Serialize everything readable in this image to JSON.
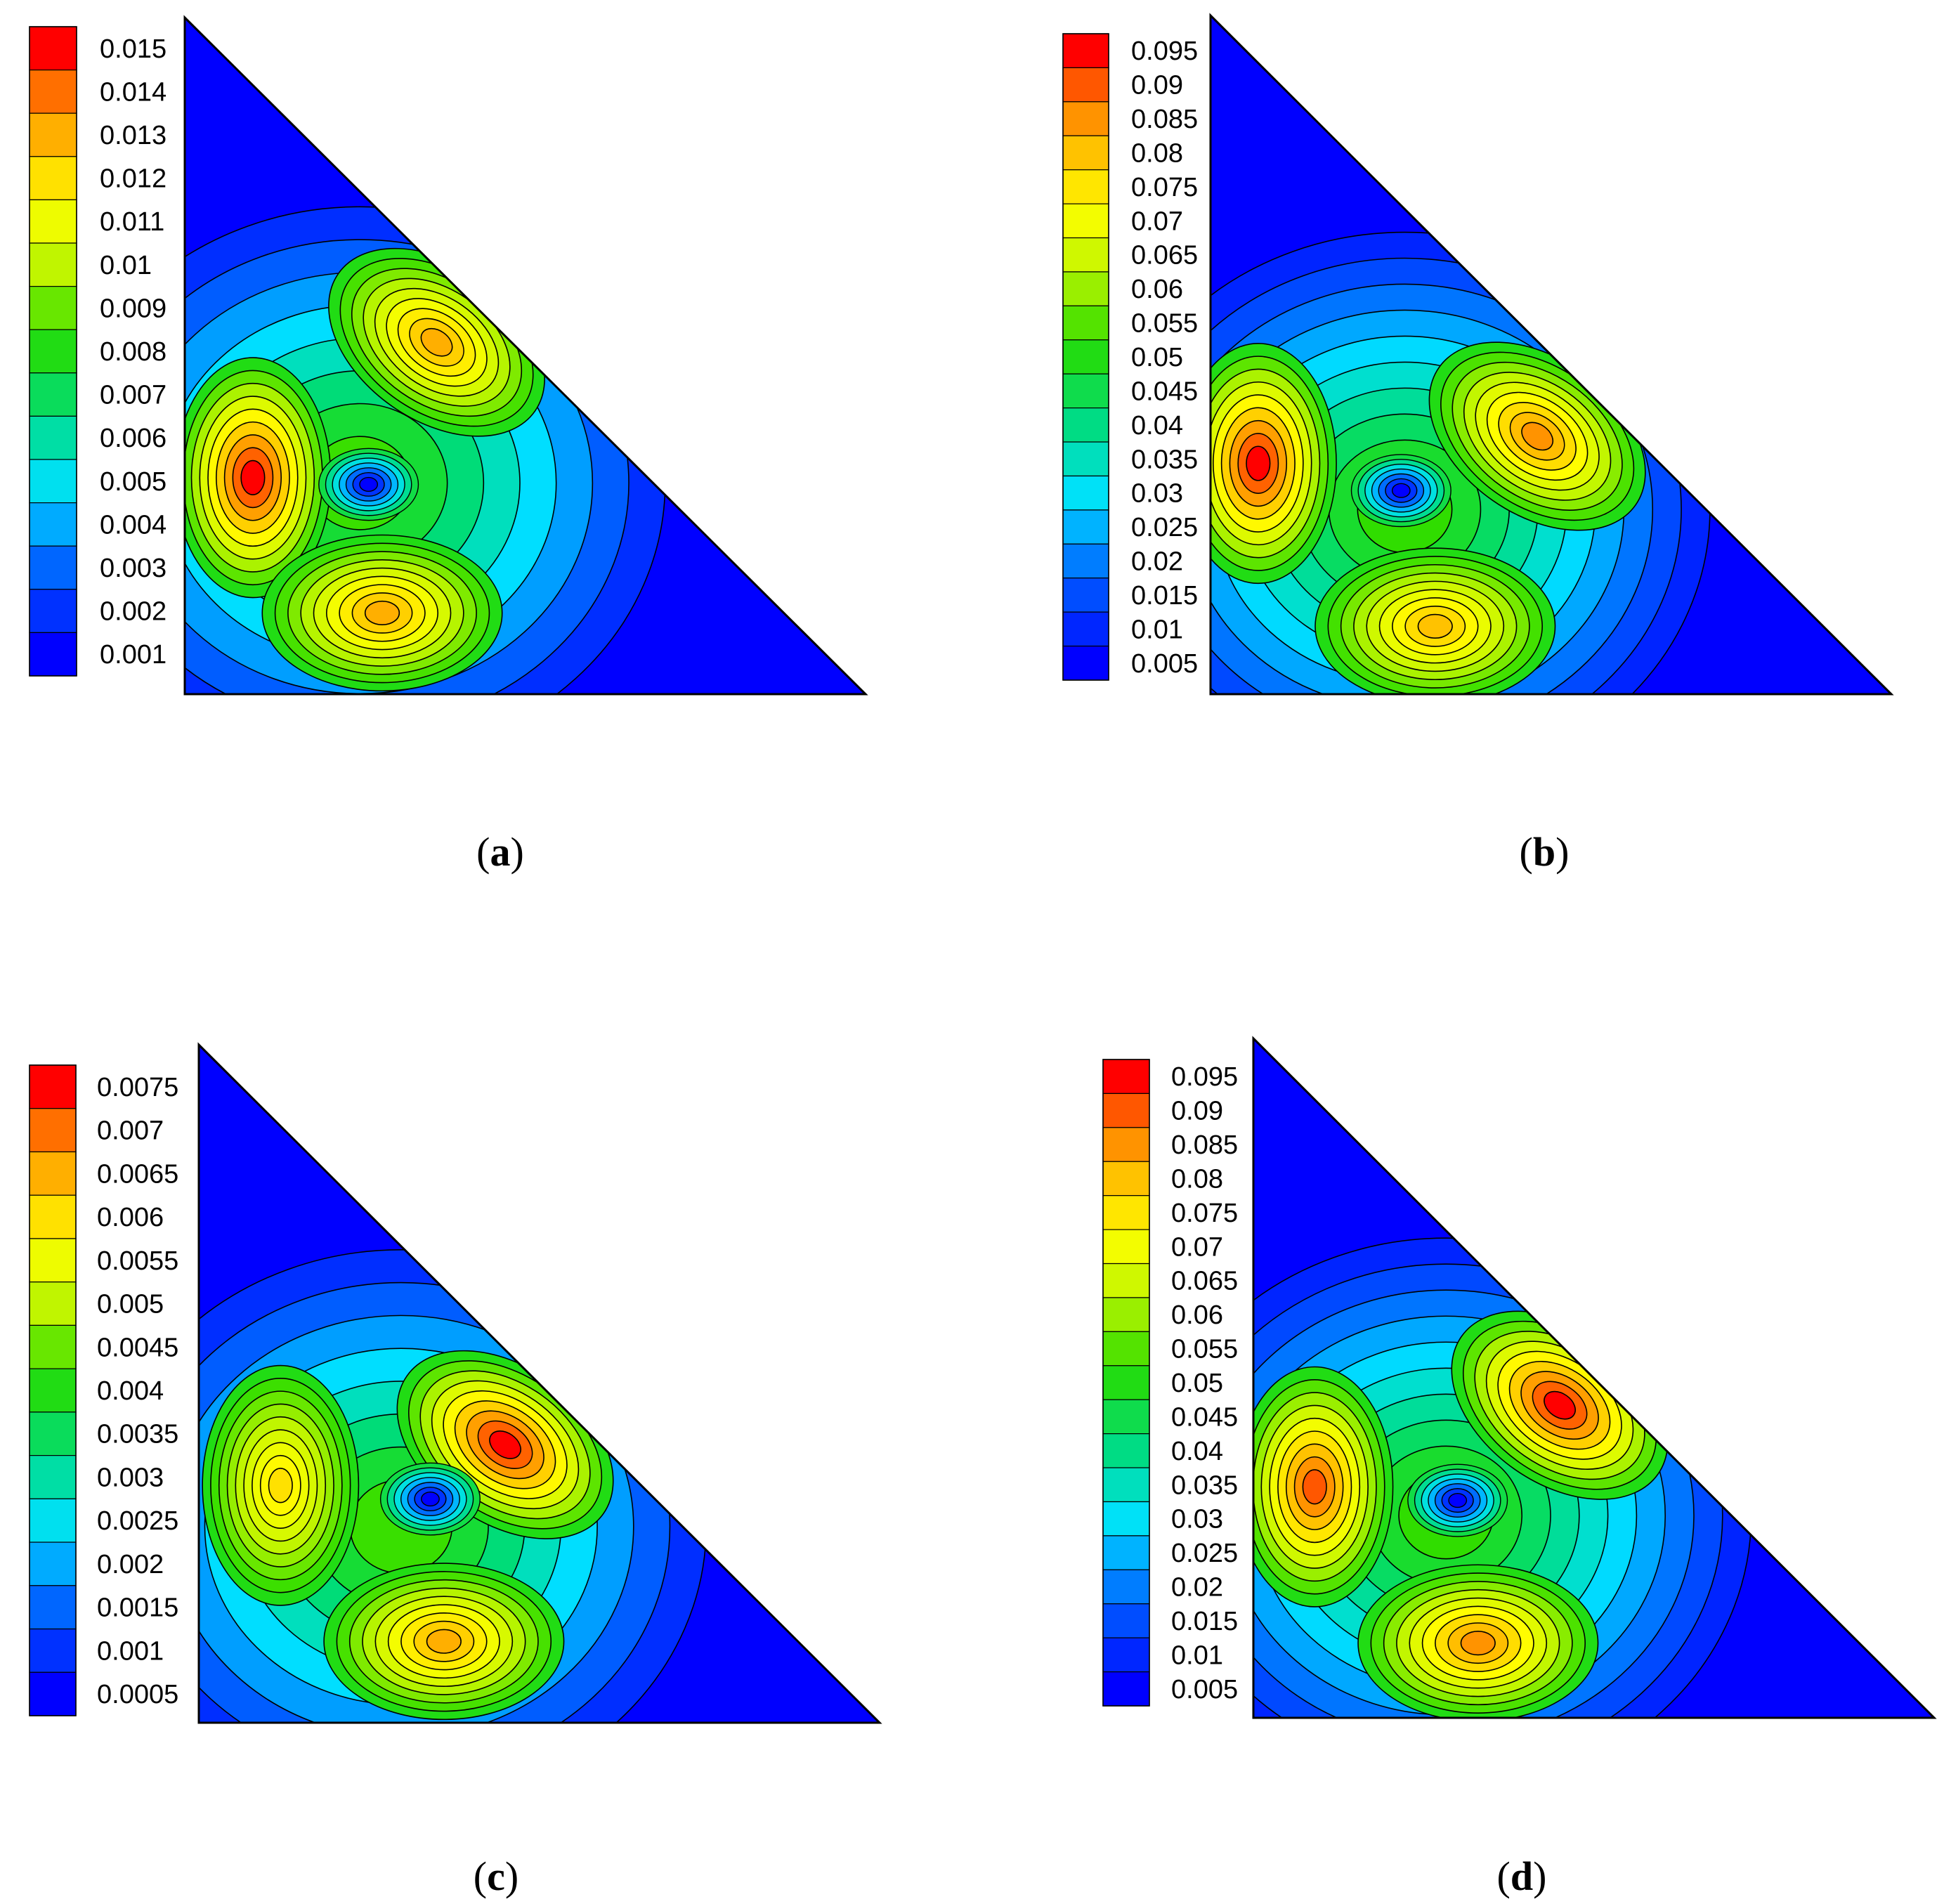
{
  "chart_data": [
    {
      "type": "heatmap",
      "panel": "a",
      "caption_letter": "a",
      "colorbar_labels": [
        "0.015",
        "0.014",
        "0.013",
        "0.012",
        "0.011",
        "0.01",
        "0.009",
        "0.008",
        "0.007",
        "0.006",
        "0.005",
        "0.004",
        "0.003",
        "0.002",
        "0.001"
      ],
      "level_range": [
        0.001,
        0.015
      ],
      "contour_peaks": [
        {
          "x": 0.1,
          "y": 0.32,
          "value": 0.015
        },
        {
          "x": 0.37,
          "y": 0.52,
          "value": 0.013
        },
        {
          "x": 0.29,
          "y": 0.12,
          "value": 0.013
        },
        {
          "x": 0.27,
          "y": 0.31,
          "value": 0.001
        }
      ]
    },
    {
      "type": "heatmap",
      "panel": "b",
      "caption_letter": "b",
      "colorbar_labels": [
        "0.095",
        "0.09",
        "0.085",
        "0.08",
        "0.075",
        "0.07",
        "0.065",
        "0.06",
        "0.055",
        "0.05",
        "0.045",
        "0.04",
        "0.035",
        "0.03",
        "0.025",
        "0.02",
        "0.015",
        "0.01",
        "0.005"
      ],
      "level_range": [
        0.005,
        0.095
      ],
      "contour_peaks": [
        {
          "x": 0.07,
          "y": 0.34,
          "value": 0.095
        },
        {
          "x": 0.48,
          "y": 0.38,
          "value": 0.085
        },
        {
          "x": 0.33,
          "y": 0.1,
          "value": 0.08
        },
        {
          "x": 0.28,
          "y": 0.3,
          "value": 0.005
        }
      ]
    },
    {
      "type": "heatmap",
      "panel": "c",
      "caption_letter": "c",
      "colorbar_labels": [
        "0.0075",
        "0.007",
        "0.0065",
        "0.006",
        "0.0055",
        "0.005",
        "0.0045",
        "0.004",
        "0.0035",
        "0.003",
        "0.0025",
        "0.002",
        "0.0015",
        "0.001",
        "0.0005"
      ],
      "level_range": [
        0.0005,
        0.0075
      ],
      "contour_peaks": [
        {
          "x": 0.45,
          "y": 0.41,
          "value": 0.0075
        },
        {
          "x": 0.12,
          "y": 0.35,
          "value": 0.006
        },
        {
          "x": 0.36,
          "y": 0.12,
          "value": 0.0065
        },
        {
          "x": 0.34,
          "y": 0.33,
          "value": 0.0005
        }
      ]
    },
    {
      "type": "heatmap",
      "panel": "d",
      "caption_letter": "d",
      "colorbar_labels": [
        "0.095",
        "0.09",
        "0.085",
        "0.08",
        "0.075",
        "0.07",
        "0.065",
        "0.06",
        "0.055",
        "0.05",
        "0.045",
        "0.04",
        "0.035",
        "0.03",
        "0.025",
        "0.02",
        "0.015",
        "0.01",
        "0.005"
      ],
      "level_range": [
        0.005,
        0.095
      ],
      "contour_peaks": [
        {
          "x": 0.45,
          "y": 0.46,
          "value": 0.095
        },
        {
          "x": 0.09,
          "y": 0.34,
          "value": 0.09
        },
        {
          "x": 0.33,
          "y": 0.11,
          "value": 0.085
        },
        {
          "x": 0.3,
          "y": 0.32,
          "value": 0.005
        }
      ]
    }
  ]
}
